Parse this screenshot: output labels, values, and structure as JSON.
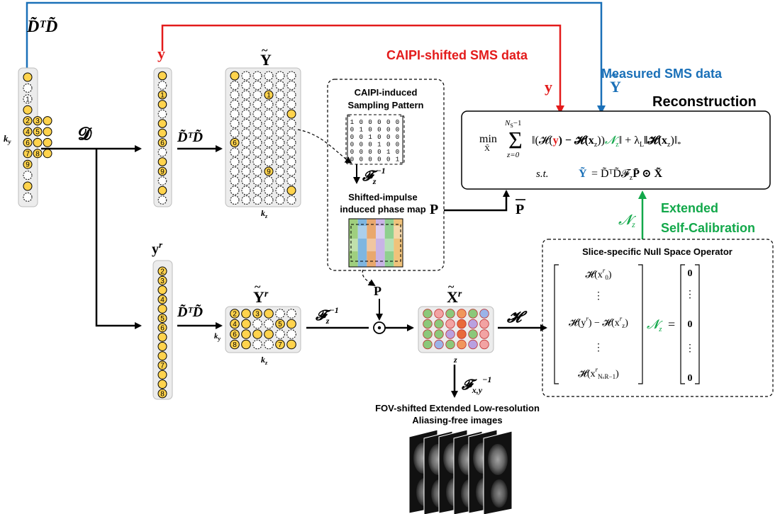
{
  "labels": {
    "dtd_top": "D̃ᵀD̃",
    "dtd_mid": "D̃ᵀD̃",
    "dtd_low": "D̃ᵀD̃",
    "ky_left": "k",
    "ky_left_sub": "y",
    "ky_small": "k",
    "ky_small_sub": "y",
    "kz_top": "k",
    "kz_top_sub": "z",
    "kz_bottom": "k",
    "kz_bottom_sub": "z",
    "z_axis": "z",
    "D_op": "𝓓",
    "y_top": "y",
    "y_r": "y",
    "y_r_sup": "r",
    "Y_tilde": "Y",
    "Y_tilde_r": "Y",
    "Y_tilde_r_sup": "r",
    "X_tilde_r": "X",
    "X_tilde_r_sup": "r",
    "Fz_inv_top": "𝓕",
    "Fz_inv_top_sub": "z",
    "Fz_inv_top_sup": "−1",
    "Fz_inv_low": "𝓕",
    "Fz_inv_low_sub": "z",
    "Fz_inv_low_sup": "−1",
    "Fxy_inv": "𝓕",
    "Fxy_inv_sub": "x,y",
    "Fxy_inv_sup": "−1",
    "H_op": "𝓗",
    "P_label": "P",
    "P_low": "P",
    "P_bar": "P",
    "Nz_label": "𝓝",
    "Nz_label_sub": "z",
    "caipi_data": "CAIPI-shifted SMS data",
    "measured_data": "Measured SMS data",
    "y_red": "y",
    "Y_blue": "Y",
    "reconstruction": "Reconstruction",
    "extended_1": "Extended",
    "extended_2": "Self-Calibration",
    "sampling_1": "CAIPI-induced",
    "sampling_2": "Sampling Pattern",
    "phasemap_1": "Shifted-impulse",
    "phasemap_2": "induced phase map",
    "nullspace_title": "Slice-specific Null Space Operator",
    "fov_1": "FOV-shifted Extended Low-resolution",
    "fov_2": "Aliasing-free images"
  },
  "matrix_rows": [
    "100000",
    "010000",
    "001000",
    "000100",
    "000010",
    "000001"
  ],
  "equation": {
    "min": "min",
    "min_sub": "X̃",
    "sum_top": "N",
    "sum_top_sub": "S",
    "sum_top_rest": "−1",
    "sum_bottom": "z=0",
    "term_a": "‖(𝓗(",
    "term_y": "y",
    "term_b": ") − 𝓗(x",
    "term_b_sub": "z",
    "term_c": "))",
    "term_n": "𝓝",
    "term_n_sub": "z",
    "term_d": "‖ + λ",
    "term_d_sub": "L",
    "term_e": "‖𝓗(x",
    "term_e_sub": "z",
    "term_f": ")‖",
    "term_f_sub": "*",
    "st": "s.t.",
    "st_Y": "Ỹ",
    "st_rest": "= D̃ᵀD̃𝓕",
    "st_rest_sub": "z",
    "st_end": "P̄ ⊙ X̃"
  },
  "nullspace": {
    "r0": "𝓗(x",
    "r0_sup": "r",
    "r0_sub": "0",
    "r0_end": ")",
    "dots": "⋮",
    "r2": "𝓗(y",
    "r2_sup": "r",
    "r2_mid": ") − 𝓗(x",
    "r2_sub": "z",
    "r2_sup2": "r",
    "r2_end": ")",
    "r4": "𝓗(x",
    "r4_sup": "r",
    "r4_sub": "NₛR−1",
    "r4_end": ")",
    "eq": "=",
    "zero": "0",
    "Nz": "𝓝",
    "Nz_sub": "z"
  },
  "numbers": {
    "ky_left": [
      "1",
      "2",
      "3",
      "4",
      "5",
      "6",
      "7",
      "8",
      "9"
    ],
    "y_col": [
      "1",
      "6",
      "9"
    ],
    "Y_grid": [
      "1",
      "6",
      "9"
    ],
    "yr_col": [
      "2",
      "3",
      "4",
      "5",
      "6",
      "7",
      "8"
    ],
    "Yr_grid": [
      "2",
      "3",
      "4",
      "5",
      "6",
      "7",
      "8"
    ]
  },
  "colors": {
    "red": "#e31b1b",
    "blue": "#1a70b8",
    "green": "#12a84a",
    "yellow": "#ffd34d",
    "panel": "#ececec"
  }
}
